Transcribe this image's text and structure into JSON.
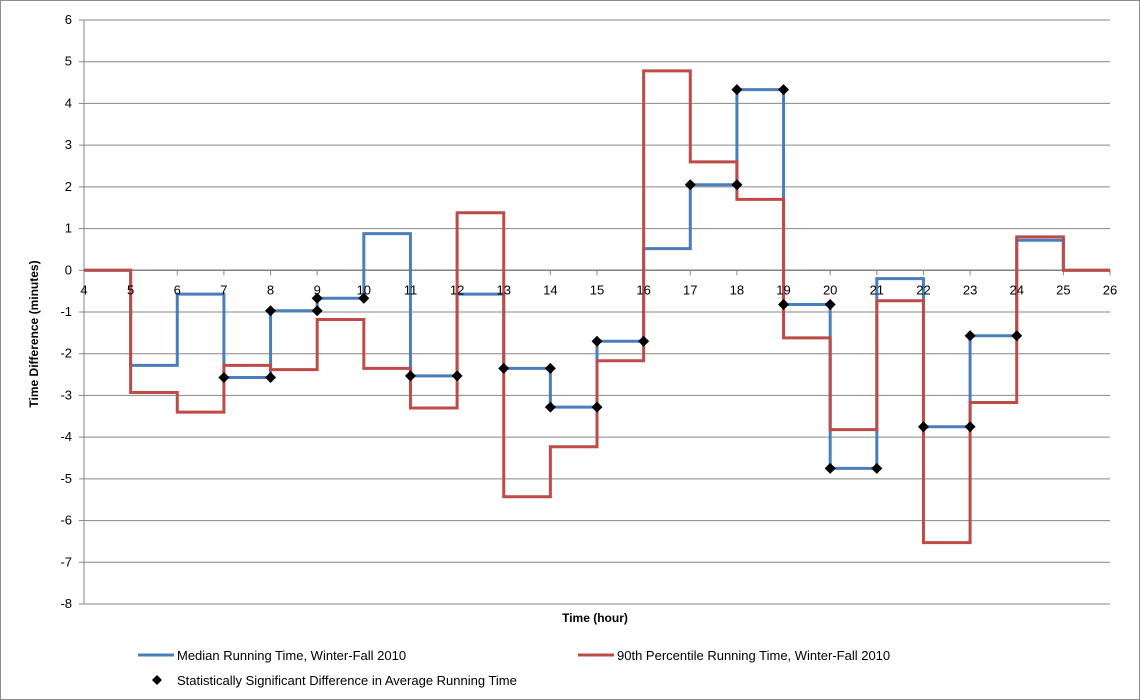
{
  "chart_data": {
    "type": "line",
    "title": "",
    "xlabel": "Time (hour)",
    "ylabel": "Time Difference (minutes)",
    "xlim": [
      4,
      26
    ],
    "ylim": [
      -8,
      6
    ],
    "x_ticks": [
      4,
      5,
      6,
      7,
      8,
      9,
      10,
      11,
      12,
      13,
      14,
      15,
      16,
      17,
      18,
      19,
      20,
      21,
      22,
      23,
      24,
      25,
      26
    ],
    "y_ticks": [
      6,
      5,
      4,
      3,
      2,
      1,
      0,
      -1,
      -2,
      -3,
      -4,
      -5,
      -6,
      -7,
      -8
    ],
    "grid": "horizontal",
    "legend_position": "bottom",
    "series": [
      {
        "name": "Median Running Time, Winter-Fall 2010",
        "color": "#4a7ebb",
        "style": "step",
        "steps": [
          [
            4,
            0
          ],
          [
            5,
            -2.28
          ],
          [
            6,
            -0.57
          ],
          [
            7,
            -2.57
          ],
          [
            8,
            -0.97
          ],
          [
            9,
            -0.67
          ],
          [
            10,
            0.88
          ],
          [
            11,
            -2.53
          ],
          [
            12,
            -0.57
          ],
          [
            13,
            -2.35
          ],
          [
            14,
            -3.28
          ],
          [
            15,
            -1.7
          ],
          [
            16,
            0.52
          ],
          [
            17,
            2.05
          ],
          [
            18,
            4.33
          ],
          [
            19,
            -0.82
          ],
          [
            20,
            -4.75
          ],
          [
            21,
            -0.2
          ],
          [
            22,
            -3.75
          ],
          [
            23,
            -1.57
          ],
          [
            24,
            0.72
          ],
          [
            25,
            0
          ],
          [
            26,
            0
          ]
        ]
      },
      {
        "name": "90th Percentile Running Time, Winter-Fall 2010",
        "color": "#be4b48",
        "style": "step",
        "steps": [
          [
            4,
            0
          ],
          [
            5,
            -2.93
          ],
          [
            6,
            -3.4
          ],
          [
            7,
            -2.28
          ],
          [
            8,
            -2.38
          ],
          [
            9,
            -1.18
          ],
          [
            10,
            -2.35
          ],
          [
            11,
            -3.3
          ],
          [
            12,
            1.38
          ],
          [
            13,
            -5.43
          ],
          [
            14,
            -4.23
          ],
          [
            15,
            -2.17
          ],
          [
            16,
            4.78
          ],
          [
            17,
            2.6
          ],
          [
            18,
            1.7
          ],
          [
            19,
            -1.62
          ],
          [
            20,
            -3.82
          ],
          [
            21,
            -0.73
          ],
          [
            22,
            -6.53
          ],
          [
            23,
            -3.17
          ],
          [
            24,
            0.8
          ],
          [
            25,
            0
          ],
          [
            26,
            0
          ]
        ]
      },
      {
        "name": "Statistically Significant Difference in Average Running Time",
        "color": "#000000",
        "style": "marker-diamond",
        "points": [
          [
            7,
            -2.57
          ],
          [
            8,
            -2.57
          ],
          [
            8,
            -0.97
          ],
          [
            9,
            -0.97
          ],
          [
            9,
            -0.67
          ],
          [
            10,
            -0.67
          ],
          [
            11,
            -2.53
          ],
          [
            12,
            -2.53
          ],
          [
            13,
            -2.35
          ],
          [
            14,
            -2.35
          ],
          [
            14,
            -3.28
          ],
          [
            15,
            -3.28
          ],
          [
            15,
            -1.7
          ],
          [
            16,
            -1.7
          ],
          [
            17,
            2.05
          ],
          [
            18,
            2.05
          ],
          [
            18,
            4.33
          ],
          [
            19,
            4.33
          ],
          [
            19,
            -0.82
          ],
          [
            20,
            -0.82
          ],
          [
            20,
            -4.75
          ],
          [
            21,
            -4.75
          ],
          [
            22,
            -3.75
          ],
          [
            23,
            -3.75
          ],
          [
            23,
            -1.57
          ],
          [
            24,
            -1.57
          ]
        ]
      }
    ]
  }
}
